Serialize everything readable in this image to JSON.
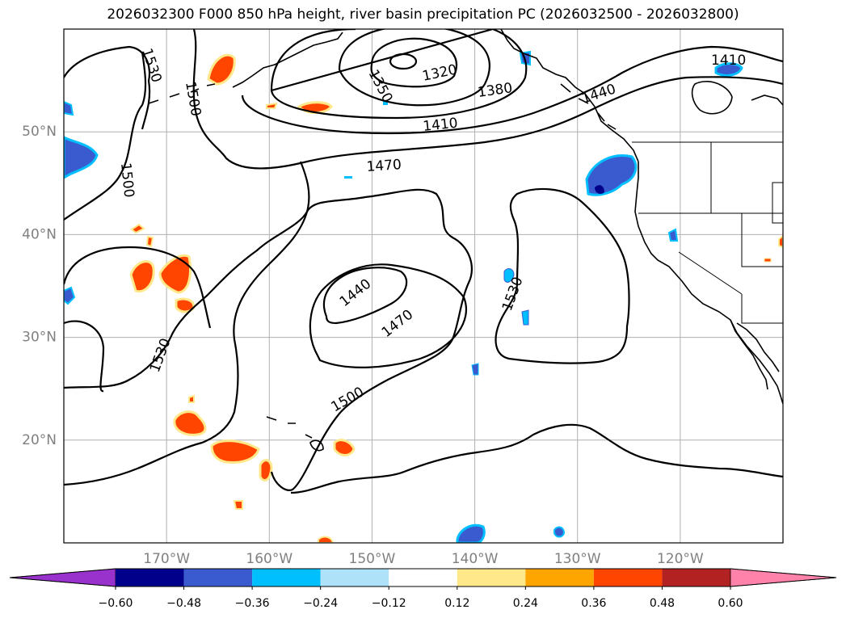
{
  "title": "2026032300 F000 850 hPa height, river basin precipitation PC (2026032500 - 2026032800)",
  "map": {
    "projection": "PlateCarree",
    "lon_range": [
      -180,
      -110
    ],
    "lat_range": [
      10,
      60
    ],
    "gridlines": true,
    "lat_ticks": [
      {
        "value": 50,
        "label": "50°N"
      },
      {
        "value": 40,
        "label": "40°N"
      },
      {
        "value": 30,
        "label": "30°N"
      },
      {
        "value": 20,
        "label": "20°N"
      }
    ],
    "lon_ticks": [
      {
        "value": -170,
        "label": "170°W"
      },
      {
        "value": -160,
        "label": "160°W"
      },
      {
        "value": -150,
        "label": "150°W"
      },
      {
        "value": -140,
        "label": "140°W"
      },
      {
        "value": -130,
        "label": "130°W"
      },
      {
        "value": -120,
        "label": "120°W"
      }
    ],
    "contour_labels": [
      "1320",
      "1350",
      "1380",
      "1410",
      "1470",
      "1500",
      "1530",
      "1440",
      "1470",
      "1530",
      "1500",
      "1530",
      "1500",
      "1410",
      "1440"
    ],
    "features": [
      "coastlines",
      "country borders",
      "US state borders",
      "850 hPa height contours",
      "precipitation PC shading"
    ]
  },
  "colorbar": {
    "tick_labels": [
      "−0.60",
      "−0.48",
      "−0.36",
      "−0.24",
      "−0.12",
      "0.12",
      "0.24",
      "0.36",
      "0.48",
      "0.60"
    ],
    "colors": [
      "#9932CC",
      "#00008B",
      "#3A5BD0",
      "#00BFFF",
      "#ADE2F8",
      "#FFFFFF",
      "#FFE88A",
      "#FFA500",
      "#FF4500",
      "#B22222",
      "#FF82AB"
    ],
    "extend": "both"
  }
}
